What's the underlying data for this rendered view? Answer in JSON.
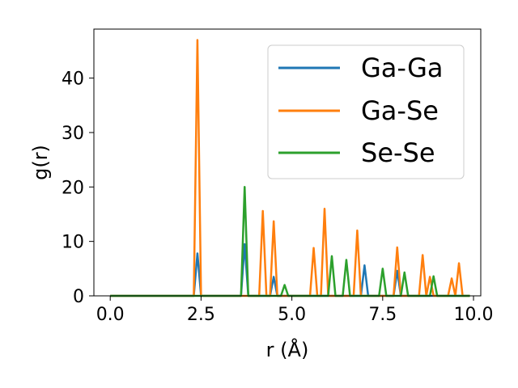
{
  "chart_data": {
    "type": "line",
    "xlabel": "r (Å)",
    "ylabel": "g(r)",
    "xlim": [
      -0.45,
      10.2
    ],
    "ylim": [
      0,
      49
    ],
    "xticks": [
      0.0,
      2.5,
      5.0,
      7.5,
      10.0
    ],
    "xtick_labels": [
      "0.0",
      "2.5",
      "5.0",
      "7.5",
      "10.0"
    ],
    "yticks": [
      0,
      10,
      20,
      30,
      40
    ],
    "ytick_labels": [
      "0",
      "10",
      "20",
      "30",
      "40"
    ],
    "grid": false,
    "legend_position": "upper right",
    "series": [
      {
        "name": "Ga-Ga",
        "color": "#1f77b4",
        "x": [
          0.0,
          2.3,
          2.4,
          2.5,
          3.6,
          3.7,
          3.8,
          4.4,
          4.5,
          4.6,
          6.9,
          7.0,
          7.1,
          7.8,
          7.9,
          8.0,
          9.9
        ],
        "y": [
          0,
          0,
          7.8,
          0,
          0,
          9.5,
          0,
          0,
          3.5,
          0,
          0,
          5.6,
          0,
          0,
          4.6,
          0,
          0
        ]
      },
      {
        "name": "Ga-Se",
        "color": "#ff7f0e",
        "x": [
          0.0,
          2.3,
          2.4,
          2.5,
          4.1,
          4.2,
          4.3,
          4.4,
          4.5,
          4.6,
          5.5,
          5.6,
          5.7,
          5.8,
          5.9,
          6.0,
          6.7,
          6.8,
          6.9,
          7.8,
          7.9,
          8.0,
          8.5,
          8.6,
          8.7,
          8.8,
          8.9,
          9.3,
          9.4,
          9.5,
          9.6,
          9.7,
          9.9
        ],
        "y": [
          0,
          0,
          47,
          0,
          0,
          15.6,
          0,
          0,
          13.7,
          0,
          0,
          8.8,
          0,
          0,
          16,
          0,
          0,
          12,
          0,
          0,
          8.9,
          0,
          0,
          7.5,
          0,
          3.5,
          0,
          0,
          3.2,
          0,
          6,
          0,
          0
        ]
      },
      {
        "name": "Se-Se",
        "color": "#2ca02c",
        "x": [
          0.0,
          3.6,
          3.7,
          3.8,
          4.7,
          4.8,
          4.9,
          6.0,
          6.1,
          6.2,
          6.4,
          6.5,
          6.6,
          7.4,
          7.5,
          7.6,
          8.0,
          8.1,
          8.2,
          8.8,
          8.9,
          9.0,
          9.9
        ],
        "y": [
          0,
          0,
          20,
          0,
          0,
          2,
          0,
          0,
          7.3,
          0,
          0,
          6.6,
          0,
          0,
          5,
          0,
          0,
          4.3,
          0,
          0,
          3.6,
          0,
          0
        ]
      }
    ]
  }
}
